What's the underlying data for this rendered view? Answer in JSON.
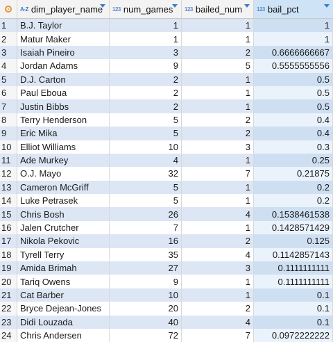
{
  "columns": [
    {
      "icon": "A-Z",
      "name": "dim_player_name"
    },
    {
      "icon": "123",
      "name": "num_games"
    },
    {
      "icon": "123",
      "name": "bailed_num"
    },
    {
      "icon": "123",
      "name": "bail_pct"
    }
  ],
  "rows": [
    {
      "n": "1",
      "name": "B.J. Taylor",
      "games": "1",
      "bailed": "1",
      "pct": "1"
    },
    {
      "n": "2",
      "name": "Matur Maker",
      "games": "1",
      "bailed": "1",
      "pct": "1"
    },
    {
      "n": "3",
      "name": "Isaiah Pineiro",
      "games": "3",
      "bailed": "2",
      "pct": "0.6666666667"
    },
    {
      "n": "4",
      "name": "Jordan Adams",
      "games": "9",
      "bailed": "5",
      "pct": "0.5555555556"
    },
    {
      "n": "5",
      "name": "D.J. Carton",
      "games": "2",
      "bailed": "1",
      "pct": "0.5"
    },
    {
      "n": "6",
      "name": "Paul Eboua",
      "games": "2",
      "bailed": "1",
      "pct": "0.5"
    },
    {
      "n": "7",
      "name": "Justin Bibbs",
      "games": "2",
      "bailed": "1",
      "pct": "0.5"
    },
    {
      "n": "8",
      "name": "Terry Henderson",
      "games": "5",
      "bailed": "2",
      "pct": "0.4"
    },
    {
      "n": "9",
      "name": "Eric Mika",
      "games": "5",
      "bailed": "2",
      "pct": "0.4"
    },
    {
      "n": "10",
      "name": "Elliot Williams",
      "games": "10",
      "bailed": "3",
      "pct": "0.3"
    },
    {
      "n": "11",
      "name": "Ade Murkey",
      "games": "4",
      "bailed": "1",
      "pct": "0.25"
    },
    {
      "n": "12",
      "name": "O.J. Mayo",
      "games": "32",
      "bailed": "7",
      "pct": "0.21875"
    },
    {
      "n": "13",
      "name": "Cameron McGriff",
      "games": "5",
      "bailed": "1",
      "pct": "0.2"
    },
    {
      "n": "14",
      "name": "Luke Petrasek",
      "games": "5",
      "bailed": "1",
      "pct": "0.2"
    },
    {
      "n": "15",
      "name": "Chris Bosh",
      "games": "26",
      "bailed": "4",
      "pct": "0.1538461538"
    },
    {
      "n": "16",
      "name": "Jalen Crutcher",
      "games": "7",
      "bailed": "1",
      "pct": "0.1428571429"
    },
    {
      "n": "17",
      "name": "Nikola Pekovic",
      "games": "16",
      "bailed": "2",
      "pct": "0.125"
    },
    {
      "n": "18",
      "name": "Tyrell Terry",
      "games": "35",
      "bailed": "4",
      "pct": "0.1142857143"
    },
    {
      "n": "19",
      "name": "Amida Brimah",
      "games": "27",
      "bailed": "3",
      "pct": "0.1111111111"
    },
    {
      "n": "20",
      "name": "Tariq Owens",
      "games": "9",
      "bailed": "1",
      "pct": "0.1111111111"
    },
    {
      "n": "21",
      "name": "Cat Barber",
      "games": "10",
      "bailed": "1",
      "pct": "0.1"
    },
    {
      "n": "22",
      "name": "Bryce Dejean-Jones",
      "games": "20",
      "bailed": "2",
      "pct": "0.1"
    },
    {
      "n": "23",
      "name": "Didi Louzada",
      "games": "40",
      "bailed": "4",
      "pct": "0.1"
    },
    {
      "n": "24",
      "name": "Chris Andersen",
      "games": "72",
      "bailed": "7",
      "pct": "0.0972222222"
    }
  ]
}
